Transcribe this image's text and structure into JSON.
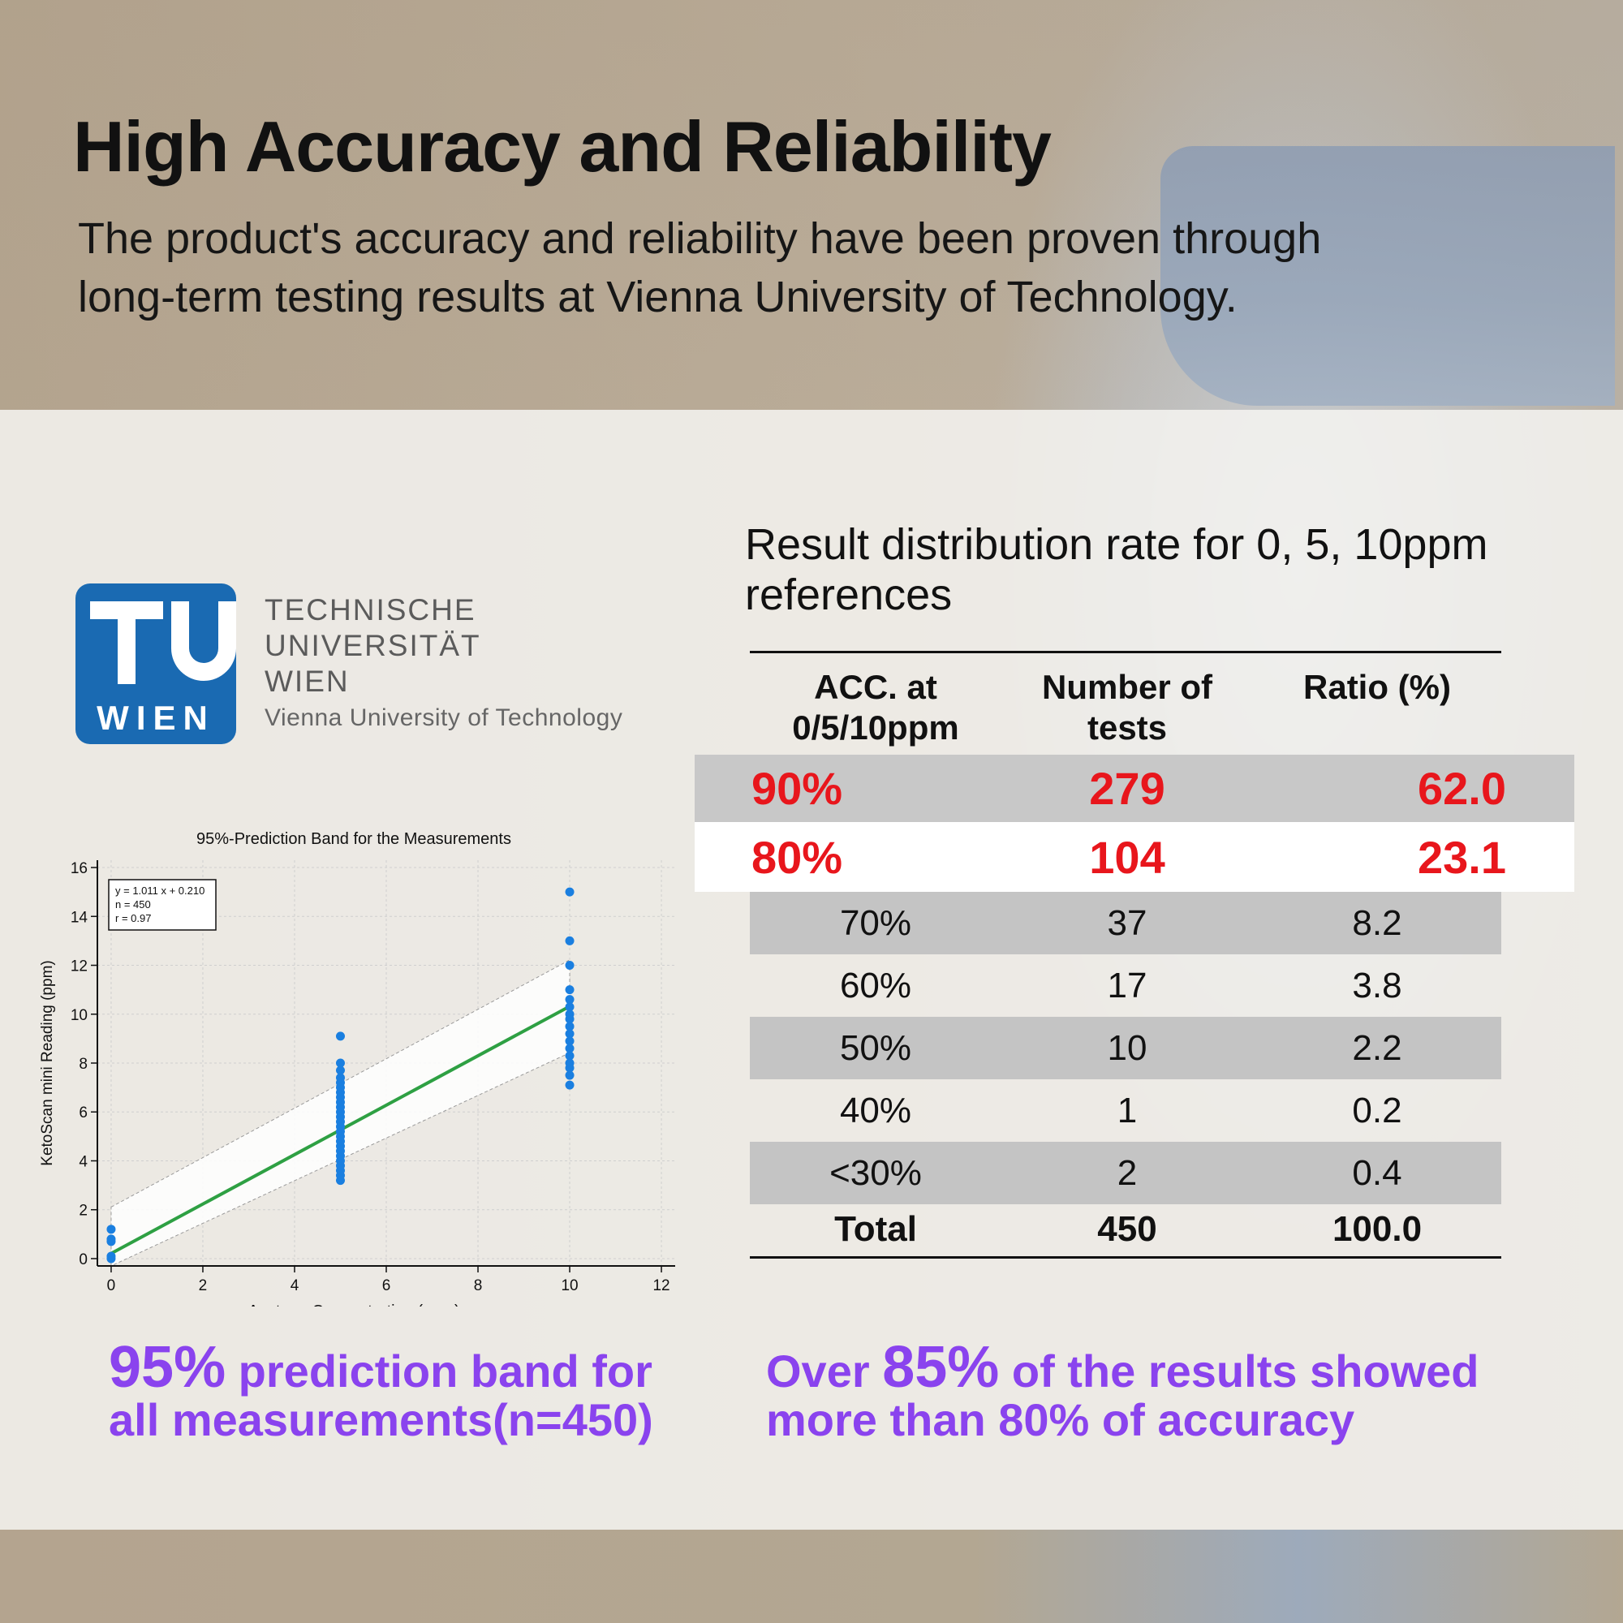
{
  "header": {
    "title": "High Accuracy and Reliability",
    "subtitle_line1": "The product's accuracy and reliability have been proven through",
    "subtitle_line2": "long-term testing results at Vienna University of Technology."
  },
  "logo": {
    "mark_word": "WIEN",
    "line1": "TECHNISCHE",
    "line2": "UNIVERSITÄT",
    "line3": "WIEN",
    "line4": "Vienna University of Technology",
    "brand_color": "#1a6ab2"
  },
  "chart_data": {
    "type": "scatter",
    "title": "95%-Prediction Band for the Measurements",
    "xlabel": "Acetone Concnetration (ppm)",
    "ylabel": "KetoScan mini Reading (ppm)",
    "xlim": [
      -0.3,
      12.3
    ],
    "ylim": [
      -0.3,
      16.3
    ],
    "xticks": [
      0,
      2,
      4,
      6,
      8,
      10,
      12
    ],
    "yticks": [
      0,
      2,
      4,
      6,
      8,
      10,
      12,
      14,
      16
    ],
    "grid": true,
    "legend_text": [
      "y = 1.011 x + 0.210",
      "n = 450",
      "r = 0.97"
    ],
    "legend_position": "top-left",
    "regression": {
      "slope": 1.011,
      "intercept": 0.21,
      "color": "#2ea043"
    },
    "prediction_band_halfwidth": 1.9,
    "point_color": "#1a7fe0",
    "series": [
      {
        "x": 0,
        "y": [
          0,
          0.1,
          0.7,
          0.8,
          1.2
        ]
      },
      {
        "x": 5,
        "y": [
          3.2,
          3.4,
          3.6,
          3.8,
          4.0,
          4.2,
          4.4,
          4.6,
          4.8,
          5.0,
          5.2,
          5.4,
          5.6,
          5.8,
          6.0,
          6.2,
          6.4,
          6.6,
          6.8,
          7.0,
          7.2,
          7.4,
          7.7,
          8.0,
          9.1
        ]
      },
      {
        "x": 10,
        "y": [
          7.1,
          7.5,
          7.8,
          8.0,
          8.3,
          8.6,
          8.9,
          9.2,
          9.5,
          9.8,
          10.0,
          10.3,
          10.6,
          11.0,
          12.0,
          13.0,
          15.0
        ]
      }
    ]
  },
  "table": {
    "title_line1": "Result distribution rate for 0, 5, 10ppm",
    "title_line2": "references",
    "headers": [
      [
        "ACC. at",
        "0/5/10ppm"
      ],
      [
        "Number of",
        "tests"
      ],
      [
        "Ratio (%)",
        ""
      ]
    ],
    "highlight_rows": [
      {
        "acc": "90%",
        "tests": "279",
        "ratio": "62.0"
      },
      {
        "acc": "80%",
        "tests": "104",
        "ratio": "23.1"
      }
    ],
    "rows": [
      {
        "acc": "70%",
        "tests": "37",
        "ratio": "8.2"
      },
      {
        "acc": "60%",
        "tests": "17",
        "ratio": "3.8"
      },
      {
        "acc": "50%",
        "tests": "10",
        "ratio": "2.2"
      },
      {
        "acc": "40%",
        "tests": "1",
        "ratio": "0.2"
      },
      {
        "acc": "<30%",
        "tests": "2",
        "ratio": "0.4"
      }
    ],
    "total": {
      "acc": "Total",
      "tests": "450",
      "ratio": "100.0"
    },
    "highlight_color": "#e8161c"
  },
  "captions": {
    "left_big": "95%",
    "left_rest": " prediction band for",
    "left_line2": "all measurements(n=450)",
    "right_pre": "Over ",
    "right_big": "85%",
    "right_rest": " of the results showed",
    "right_line2": "more than 80% of accuracy",
    "color": "#8a43ee"
  }
}
